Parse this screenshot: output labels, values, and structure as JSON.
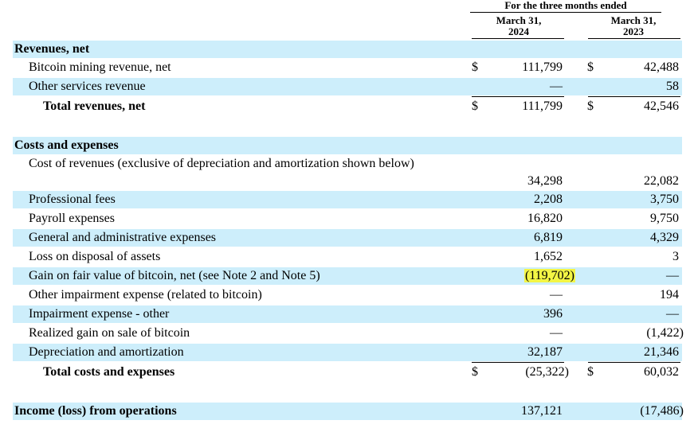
{
  "header": {
    "period": "For the three months ended",
    "col1": [
      "March 31,",
      "2024"
    ],
    "col2": [
      "March 31,",
      "2023"
    ]
  },
  "rows": [
    {
      "label": "Revenues, net",
      "bold": true
    },
    {
      "label": "Bitcoin mining revenue, net",
      "d1": "$",
      "v1": "111,799",
      "d2": "$",
      "v2": "42,488"
    },
    {
      "label": "Other services revenue",
      "v1": "—",
      "v2": "58"
    },
    {
      "label": "Total revenues, net",
      "d1": "$",
      "v1": "111,799",
      "d2": "$",
      "v2": "42,546"
    },
    {
      "label": "Costs and expenses"
    },
    {
      "label": "Cost of revenues (exclusive of depreciation and amortization shown below)",
      "v1": "34,298",
      "v2": "22,082"
    },
    {
      "label": "Professional fees",
      "v1": "2,208",
      "v2": "3,750"
    },
    {
      "label": "Payroll expenses",
      "v1": "16,820",
      "v2": "9,750"
    },
    {
      "label": "General and administrative expenses",
      "v1": "6,819",
      "v2": "4,329"
    },
    {
      "label": "Loss on disposal of assets",
      "v1": "1,652",
      "v2": "3"
    },
    {
      "label": "Gain on fair value of bitcoin, net (see Note 2 and Note 5)",
      "v1": "(119,702)",
      "v2": "—",
      "highlight": "yellow"
    },
    {
      "label": "Other impairment expense (related to bitcoin)",
      "v1": "—",
      "v2": "194"
    },
    {
      "label": "Impairment expense - other",
      "v1": "396",
      "v2": "—"
    },
    {
      "label": "Realized gain on sale of bitcoin",
      "v1": "—",
      "v2": "(1,422)"
    },
    {
      "label": "Depreciation and amortization",
      "v1": "32,187",
      "v2": "21,346"
    },
    {
      "label": "Total costs and expenses",
      "d1": "$",
      "v1": "(25,322)",
      "d2": "$",
      "v2": "60,032"
    },
    {
      "label": "Income (loss) from operations",
      "v1": "137,121",
      "v2": "(17,486)"
    }
  ],
  "colors": {
    "row_shade": "#cdeefb",
    "highlight": "#f3f545"
  }
}
